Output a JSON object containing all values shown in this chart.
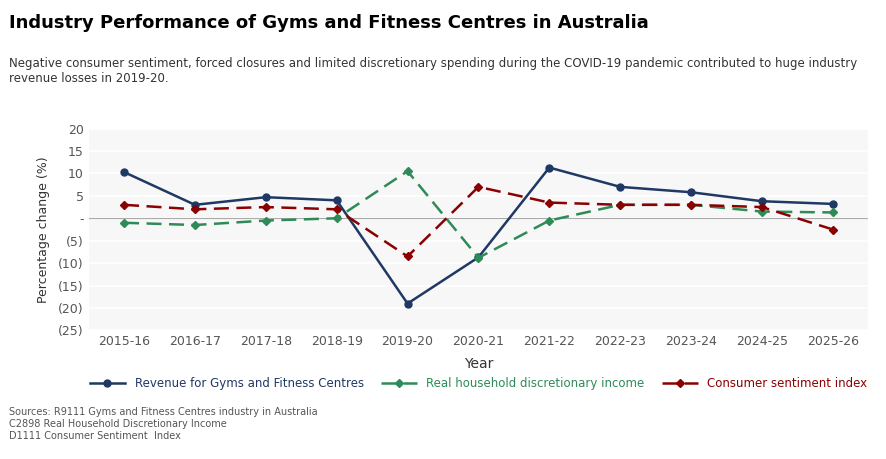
{
  "title": "Industry Performance of Gyms and Fitness Centres in Australia",
  "subtitle": "Negative consumer sentiment, forced closures and limited discretionary spending during the COVID-19 pandemic contributed to huge industry\nrevenue losses in 2019-20.",
  "subtitle_highlight": "limited discretionary spending",
  "xlabel": "Year",
  "ylabel": "Percentage change (%)",
  "years": [
    "2015-16",
    "2016-17",
    "2017-18",
    "2018-19",
    "2019-20",
    "2020-21",
    "2021-22",
    "2022-23",
    "2023-24",
    "2024-25",
    "2025-26"
  ],
  "revenue": [
    10.3,
    3.0,
    4.7,
    4.0,
    -19.0,
    -8.7,
    11.3,
    7.0,
    5.8,
    3.8,
    3.2
  ],
  "household": [
    -1.0,
    -1.5,
    -0.5,
    0.0,
    10.5,
    -8.8,
    -0.5,
    3.0,
    3.0,
    1.5,
    1.3
  ],
  "sentiment": [
    3.0,
    2.0,
    2.5,
    2.0,
    -8.5,
    7.0,
    3.5,
    3.0,
    3.0,
    2.5,
    -2.5
  ],
  "revenue_color": "#1f3864",
  "household_color": "#2e8b57",
  "sentiment_color": "#8b0000",
  "ylim": [
    -25,
    20
  ],
  "yticks": [
    20,
    15,
    10,
    5,
    0,
    -5,
    -10,
    -15,
    -20,
    -25
  ],
  "background_color": "#f0f0f0",
  "plot_bg_color": "#f7f7f7",
  "sources": "Sources: R9111 Gyms and Fitness Centres industry in Australia\nC2898 Real Household Discretionary Income\nD1111 Consumer Sentiment  Index"
}
